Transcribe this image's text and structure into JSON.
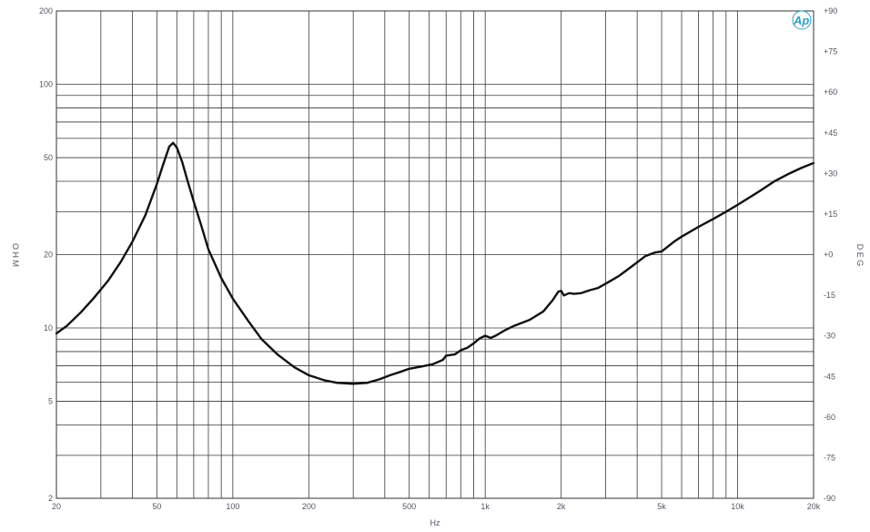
{
  "chart_data": {
    "type": "line",
    "title": "",
    "xlabel": "Hz",
    "ylabel": "O H M",
    "y2label": "D E G",
    "x_scale": "log",
    "y_scale": "log",
    "xlim": [
      20,
      20000
    ],
    "ylim": [
      2,
      200
    ],
    "y2lim": [
      -90,
      90
    ],
    "grid": true,
    "legend": "none",
    "x_ticks": [
      {
        "value": 20,
        "label": "20"
      },
      {
        "value": 50,
        "label": "50"
      },
      {
        "value": 100,
        "label": "100"
      },
      {
        "value": 200,
        "label": "200"
      },
      {
        "value": 500,
        "label": "500"
      },
      {
        "value": 1000,
        "label": "1k"
      },
      {
        "value": 2000,
        "label": "2k"
      },
      {
        "value": 5000,
        "label": "5k"
      },
      {
        "value": 10000,
        "label": "10k"
      },
      {
        "value": 20000,
        "label": "20k"
      }
    ],
    "y_ticks": [
      {
        "value": 2,
        "label": "2"
      },
      {
        "value": 5,
        "label": "5"
      },
      {
        "value": 10,
        "label": "10"
      },
      {
        "value": 20,
        "label": "20"
      },
      {
        "value": 50,
        "label": "50"
      },
      {
        "value": 100,
        "label": "100"
      },
      {
        "value": 200,
        "label": "200"
      }
    ],
    "y2_ticks": [
      {
        "value": 90,
        "label": "+90"
      },
      {
        "value": 75,
        "label": "+75"
      },
      {
        "value": 60,
        "label": "+60"
      },
      {
        "value": 45,
        "label": "+45"
      },
      {
        "value": 30,
        "label": "+30"
      },
      {
        "value": 15,
        "label": "+15"
      },
      {
        "value": 0,
        "label": "+0"
      },
      {
        "value": -15,
        "label": "-15"
      },
      {
        "value": -30,
        "label": "-30"
      },
      {
        "value": -45,
        "label": "-45"
      },
      {
        "value": -60,
        "label": "-60"
      },
      {
        "value": -75,
        "label": "-75"
      },
      {
        "value": -90,
        "label": "-90"
      }
    ],
    "series": [
      {
        "color": "#111111",
        "x": [
          20,
          22,
          25,
          28,
          32,
          36,
          40,
          45,
          50,
          53,
          56,
          58,
          60,
          63,
          66,
          70,
          75,
          80,
          90,
          100,
          115,
          130,
          150,
          175,
          200,
          230,
          260,
          300,
          340,
          380,
          420,
          460,
          500,
          560,
          620,
          680,
          700,
          760,
          800,
          850,
          900,
          950,
          1000,
          1050,
          1100,
          1200,
          1300,
          1500,
          1700,
          1850,
          1950,
          2000,
          2050,
          2150,
          2250,
          2400,
          2600,
          2800,
          3000,
          3200,
          3400,
          3700,
          4000,
          4300,
          4700,
          5000,
          5300,
          5600,
          6000,
          7000,
          8000,
          9000,
          10000,
          12000,
          14000,
          16000,
          18000,
          20000
        ],
        "y": [
          9.5,
          10.2,
          11.6,
          13.2,
          15.6,
          18.7,
          22.6,
          29.0,
          39.0,
          47.0,
          55.5,
          57.5,
          55.0,
          48.0,
          40.5,
          33.0,
          26.3,
          21.0,
          16.0,
          13.2,
          10.7,
          9.0,
          7.8,
          6.9,
          6.4,
          6.1,
          5.95,
          5.9,
          5.95,
          6.15,
          6.4,
          6.6,
          6.8,
          6.95,
          7.1,
          7.4,
          7.7,
          7.8,
          8.1,
          8.3,
          8.65,
          9.05,
          9.3,
          9.1,
          9.3,
          9.8,
          10.2,
          10.8,
          11.7,
          13.0,
          14.1,
          14.2,
          13.6,
          13.9,
          13.8,
          13.9,
          14.3,
          14.6,
          15.2,
          15.8,
          16.4,
          17.5,
          18.6,
          19.7,
          20.4,
          20.6,
          21.6,
          22.6,
          23.7,
          26.0,
          28.0,
          30.0,
          32.0,
          36.0,
          40.0,
          43.0,
          45.5,
          47.5
        ]
      }
    ]
  },
  "logo": {
    "text": "Ap"
  }
}
